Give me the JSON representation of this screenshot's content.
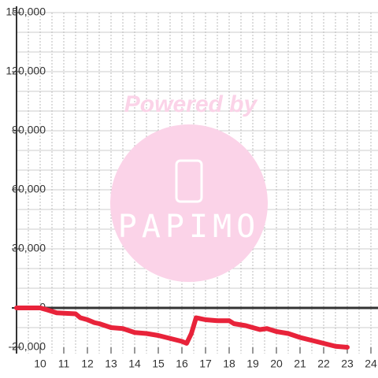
{
  "chart_data": {
    "type": "line",
    "watermark": {
      "line1": "Powered by",
      "line2": "PAPIMO"
    },
    "x": [
      9,
      10,
      10.3,
      10.7,
      11.5,
      11.7,
      12,
      12.3,
      12.5,
      13,
      13.5,
      14,
      14.5,
      15,
      15.5,
      16,
      16.2,
      16.4,
      16.6,
      17,
      17.5,
      18,
      18.2,
      18.7,
      19,
      19.3,
      19.6,
      20,
      20.5,
      21,
      21.5,
      22,
      22.5,
      23
    ],
    "series": [
      {
        "color": "#e8233a",
        "values": [
          0,
          0,
          -1000,
          -2500,
          -3000,
          -5000,
          -6000,
          -7500,
          -8000,
          -10000,
          -10500,
          -12500,
          -13000,
          -14000,
          -15500,
          -17000,
          -18000,
          -13000,
          -5000,
          -6000,
          -6500,
          -6500,
          -8000,
          -9000,
          -10000,
          -11000,
          -10500,
          -12000,
          -13000,
          -15000,
          -16500,
          -18000,
          -19500,
          -20000
        ]
      }
    ],
    "xlim": [
      9,
      24.3
    ],
    "ylim": [
      -20000,
      150000
    ],
    "xticks": [
      10,
      11,
      12,
      13,
      14,
      15,
      16,
      17,
      18,
      19,
      20,
      21,
      22,
      23,
      24
    ],
    "yticks": [
      {
        "value": 150000,
        "label": "150,000"
      },
      {
        "value": 120000,
        "label": "120,000"
      },
      {
        "value": 90000,
        "label": "90,000"
      },
      {
        "value": 60000,
        "label": "60,000"
      },
      {
        "value": 30000,
        "label": "30,000"
      },
      0,
      {
        "value": -20000,
        "label": "-20,000"
      }
    ],
    "y_grid": [
      -10000,
      10000,
      20000,
      30000,
      40000,
      50000,
      60000,
      70000,
      80000,
      90000,
      100000,
      110000,
      120000,
      130000,
      140000,
      150000
    ],
    "x_grid": [
      9.5,
      10,
      10.5,
      11,
      11.5,
      12,
      12.5,
      13,
      13.5,
      14,
      14.5,
      15,
      15.5,
      16,
      16.5,
      17,
      17.5,
      18,
      18.5,
      19,
      19.5,
      20,
      20.5,
      21,
      21.5,
      22,
      22.5,
      23,
      23.5,
      24
    ],
    "grid": true
  }
}
